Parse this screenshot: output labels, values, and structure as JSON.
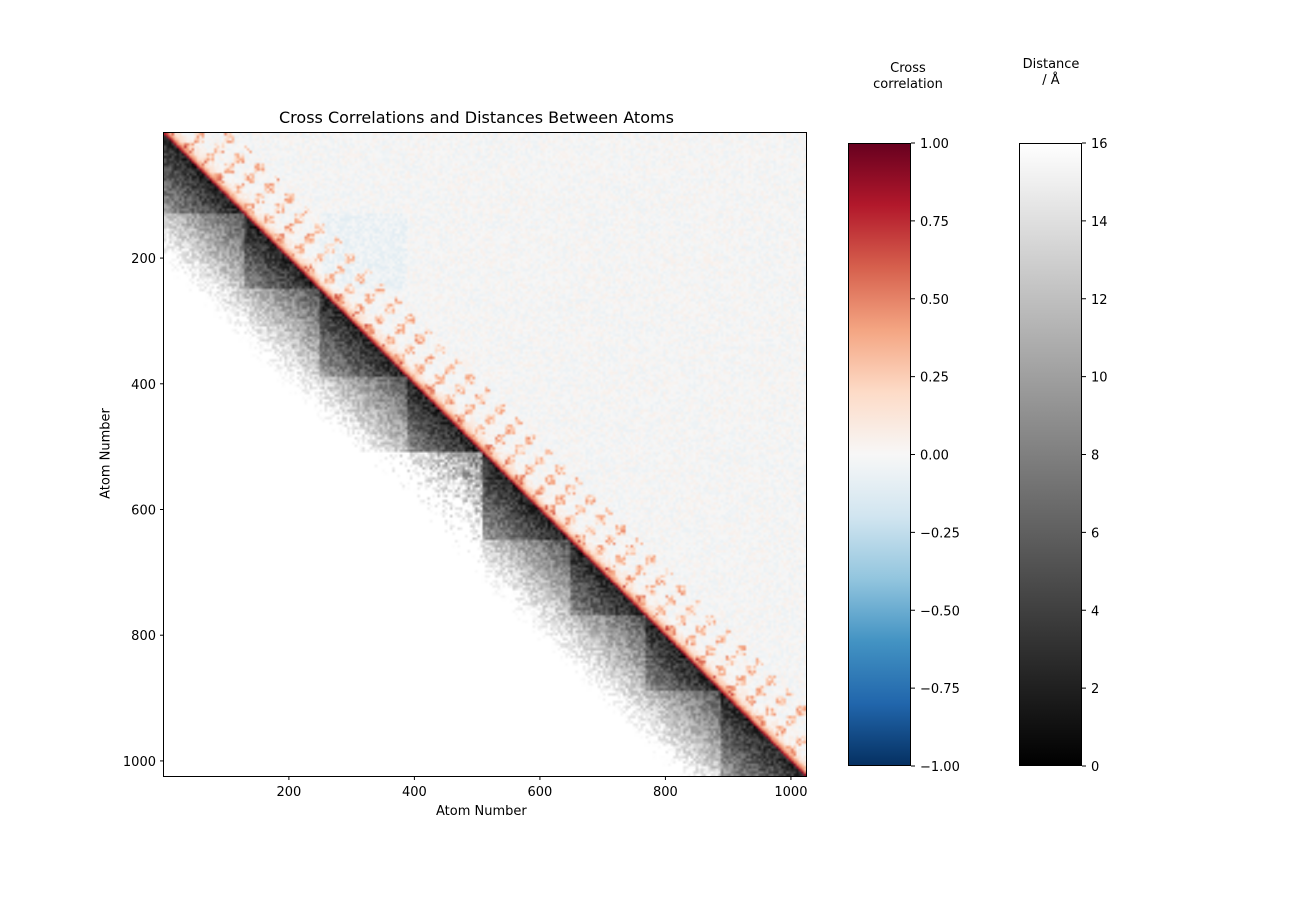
{
  "chart_data": {
    "type": "heatmap",
    "title": "Cross Correlations and Distances Between Atoms",
    "xlabel": "Atom Number",
    "ylabel": "Atom Number",
    "n_atoms": 1024,
    "xlim": [
      1,
      1024
    ],
    "ylim": [
      1024,
      1
    ],
    "x_ticks": [
      200,
      400,
      600,
      800,
      1000
    ],
    "y_ticks": [
      200,
      400,
      600,
      800,
      1000
    ],
    "grid": false,
    "upper_triangle": "cross correlation",
    "lower_triangle": "distance",
    "block_boundaries": [
      1,
      130,
      250,
      390,
      510,
      650,
      770,
      890,
      1024
    ],
    "colorbars": [
      {
        "name": "correlation",
        "title": "Cross\ncorrelation",
        "colormap": "RdBu_r",
        "range": [
          -1.0,
          1.0
        ],
        "ticks": [
          1.0,
          0.75,
          0.5,
          0.25,
          0.0,
          -0.25,
          -0.5,
          -0.75,
          -1.0
        ],
        "tick_labels": [
          "1.00",
          "0.75",
          "0.50",
          "0.25",
          "0.00",
          "−0.25",
          "−0.50",
          "−0.75",
          "−1.00"
        ],
        "stops": [
          "#053061",
          "#2166ac",
          "#4393c3",
          "#92c5de",
          "#d1e5f0",
          "#f7f7f7",
          "#fddbc7",
          "#f4a582",
          "#d6604d",
          "#b2182b",
          "#67001f"
        ]
      },
      {
        "name": "distance",
        "title": "Distance\n/ Å",
        "colormap": "gray",
        "range": [
          0,
          16
        ],
        "ticks": [
          16,
          14,
          12,
          10,
          8,
          6,
          4,
          2,
          0
        ],
        "tick_labels": [
          "16",
          "14",
          "12",
          "10",
          "8",
          "6",
          "4",
          "2",
          "0"
        ],
        "stops": [
          "#000000",
          "#ffffff"
        ]
      }
    ]
  }
}
